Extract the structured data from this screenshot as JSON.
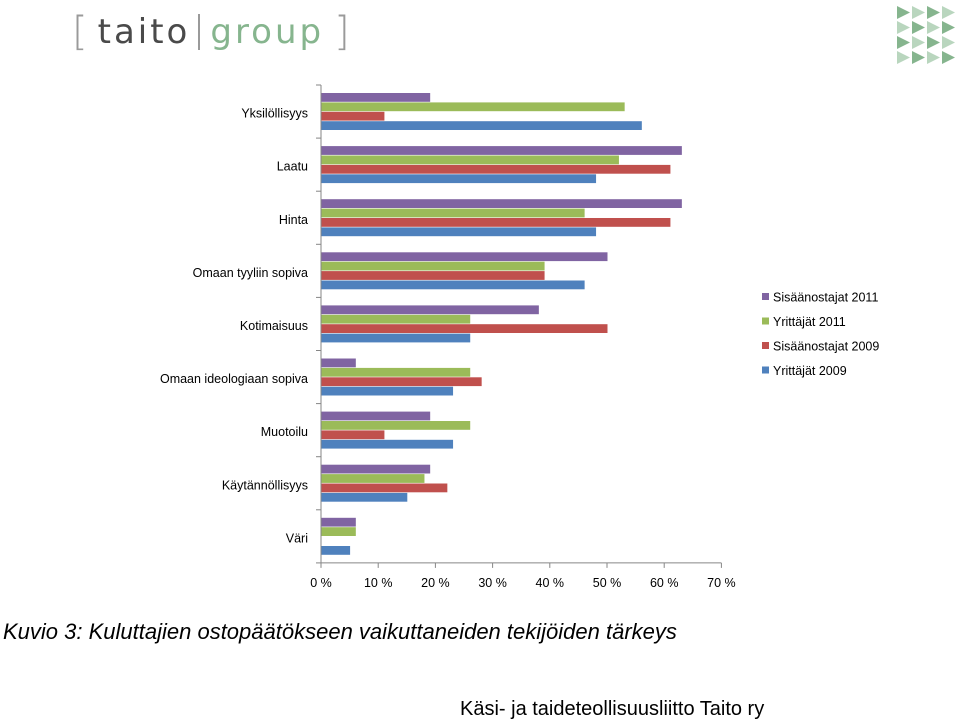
{
  "logo": {
    "left_bracket": "[",
    "word1": "taito",
    "word2": "group",
    "right_bracket": "]"
  },
  "colors": {
    "sis2011": "#8064a2",
    "yrit2011": "#9bbb59",
    "sis2009": "#c0504d",
    "yrit2009": "#4f81bd",
    "logo_green": "#86b58e",
    "logo_gray": "#4a4a4a"
  },
  "chart_data": {
    "type": "bar",
    "orientation": "horizontal",
    "categories": [
      "Yksilöllisyys",
      "Laatu",
      "Hinta",
      "Omaan tyyliin sopiva",
      "Kotimaisuus",
      "Omaan ideologiaan sopiva",
      "Muotoilu",
      "Käytännöllisyys",
      "Väri"
    ],
    "series": [
      {
        "name": "Sisäänostajat 2011",
        "color": "#8064a2",
        "values": [
          19,
          63,
          63,
          50,
          38,
          6,
          19,
          19,
          6
        ]
      },
      {
        "name": "Yrittäjät 2011",
        "color": "#9bbb59",
        "values": [
          53,
          52,
          46,
          39,
          26,
          26,
          26,
          18,
          6
        ]
      },
      {
        "name": "Sisäänostajat 2009",
        "color": "#c0504d",
        "values": [
          11,
          61,
          61,
          39,
          50,
          28,
          11,
          22,
          0
        ]
      },
      {
        "name": "Yrittäjät 2009",
        "color": "#4f81bd",
        "values": [
          56,
          48,
          48,
          46,
          26,
          23,
          23,
          15,
          5
        ]
      }
    ],
    "x_ticks": [
      "0 %",
      "10 %",
      "20 %",
      "30 %",
      "40 %",
      "50 %",
      "60 %",
      "70 %"
    ],
    "xlim": [
      0,
      70
    ],
    "grid": false,
    "legend_position": "right"
  },
  "caption": "Kuvio 3: Kuluttajien ostopäätökseen vaikuttaneiden tekijöiden tärkeys",
  "footer": "Käsi- ja taideteollisuusliitto Taito ry"
}
